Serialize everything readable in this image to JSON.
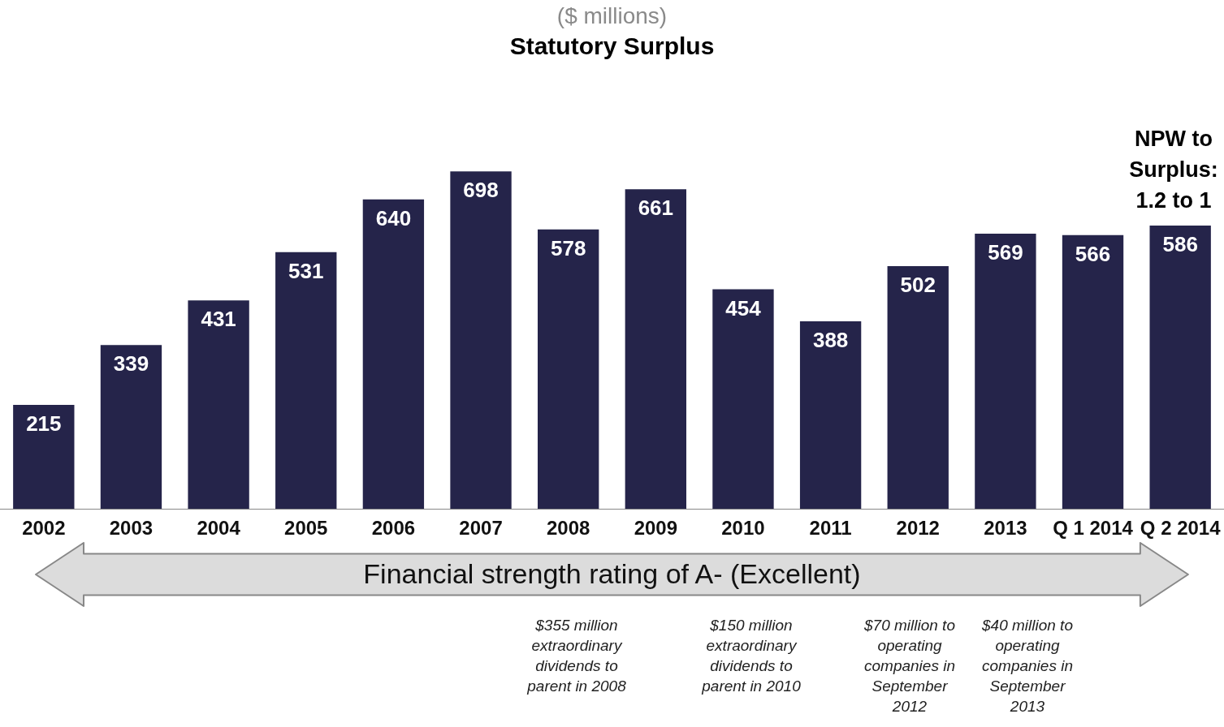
{
  "chart_data": {
    "type": "bar",
    "subtitle": "($ millions)",
    "title": "Statutory Surplus",
    "categories": [
      "2002",
      "2003",
      "2004",
      "2005",
      "2006",
      "2007",
      "2008",
      "2009",
      "2010",
      "2011",
      "2012",
      "2013",
      "Q 1 2014",
      "Q 2 2014"
    ],
    "values": [
      215,
      339,
      431,
      531,
      640,
      698,
      578,
      661,
      454,
      388,
      502,
      569,
      566,
      586
    ],
    "color": "#25244a",
    "data_labels": true,
    "tick_labels": "x",
    "annotations": [
      "Financial strength rating of A- (Excellent)",
      "NPW to Surplus: 1.2 to 1",
      "$355 million extraordinary dividends to parent in 2008",
      "$150 million extraordinary dividends to parent in 2010",
      "$70 million to operating companies in September 2012",
      "$40 million to operating companies in September 2013"
    ]
  }
}
